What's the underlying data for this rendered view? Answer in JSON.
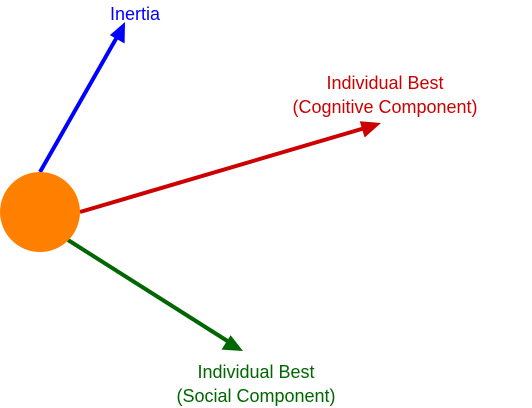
{
  "particle": {
    "color": "#ff8000"
  },
  "vectors": {
    "inertia": {
      "label": "Inertia",
      "color": "#0000ff"
    },
    "cognitive": {
      "line1": "Individual Best",
      "line2": "(Cognitive Component)",
      "color": "#cc0000"
    },
    "social": {
      "line1": "Individual Best",
      "line2": "(Social Component)",
      "color": "#006600"
    }
  }
}
